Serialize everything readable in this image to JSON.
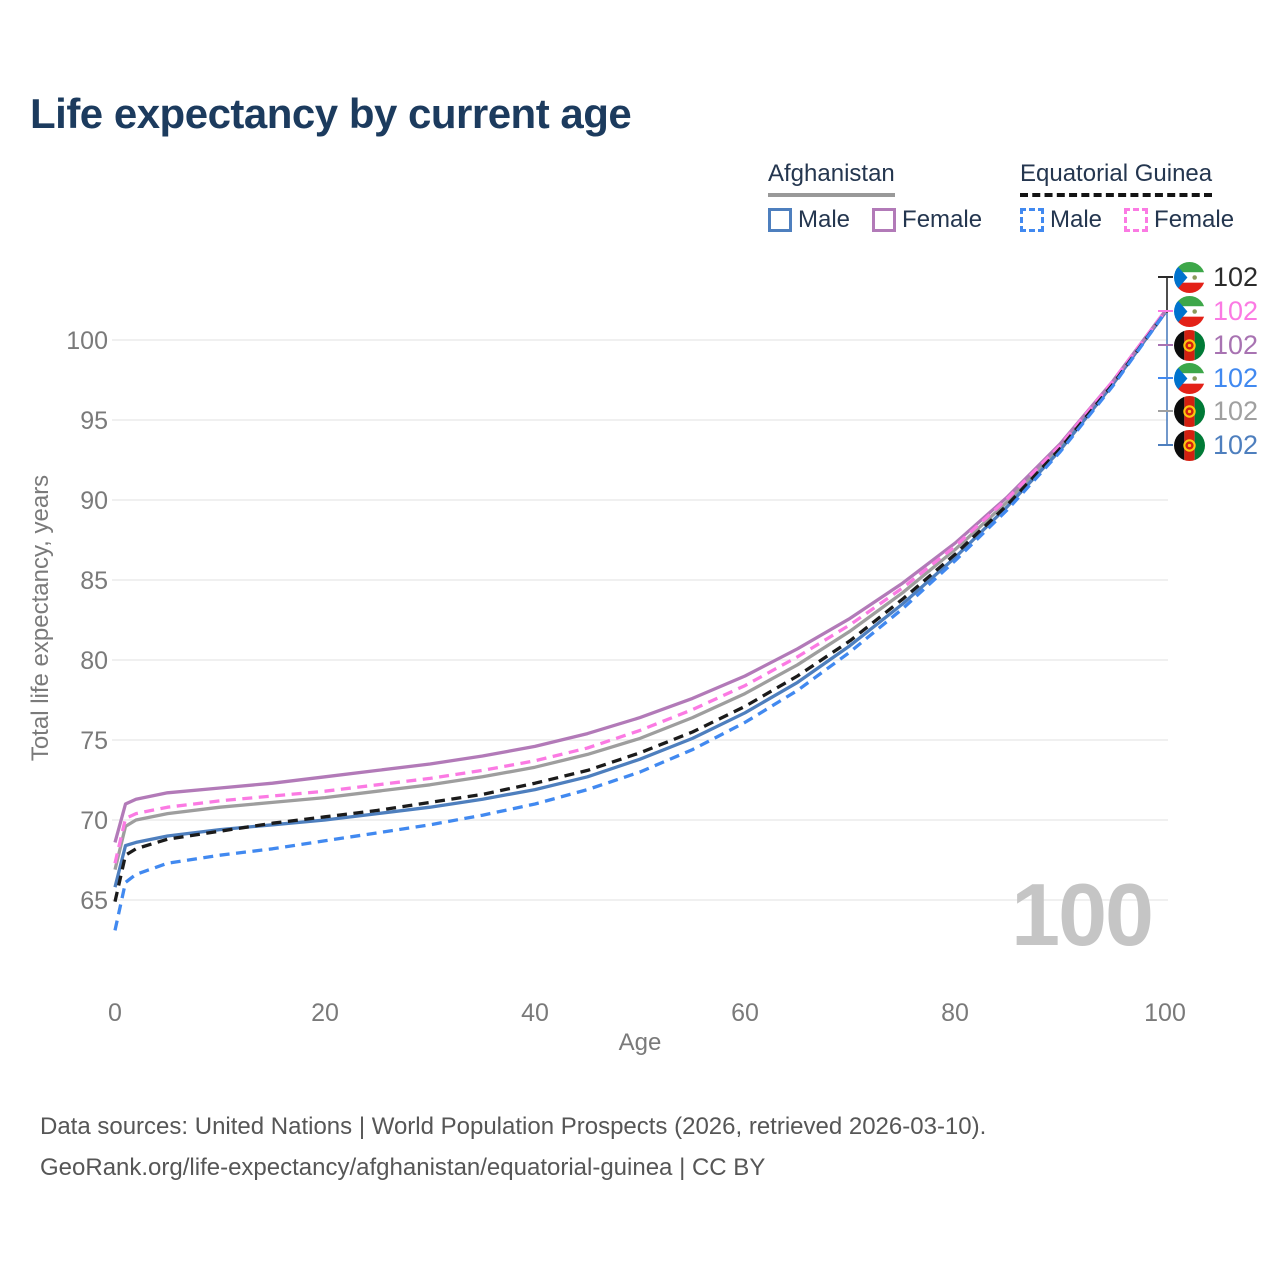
{
  "title": "Life expectancy by current age",
  "watermark_age": "100",
  "legend": {
    "groups": [
      {
        "label": "Afghanistan",
        "line_style": "solid",
        "underline_color": "#999999",
        "items": [
          {
            "label": "Male",
            "color": "#4e7fbe",
            "swatch_style": "solid"
          },
          {
            "label": "Female",
            "color": "#b27ab8",
            "swatch_style": "solid"
          }
        ]
      },
      {
        "label": "Equatorial Guinea",
        "line_style": "dashed",
        "underline_color": "#141414",
        "items": [
          {
            "label": "Male",
            "color": "#4189f0",
            "swatch_style": "dashed"
          },
          {
            "label": "Female",
            "color": "#fb7ae3",
            "swatch_style": "dashed"
          }
        ]
      }
    ]
  },
  "end_labels": [
    {
      "series": "Equatorial Guinea Total",
      "country": "Equatorial Guinea",
      "value": "102",
      "color": "#2b2b2b"
    },
    {
      "series": "Equatorial Guinea Female",
      "country": "Equatorial Guinea",
      "value": "102",
      "color": "#fb7ae3"
    },
    {
      "series": "Afghanistan Female",
      "country": "Afghanistan",
      "value": "102",
      "color": "#a873b2"
    },
    {
      "series": "Equatorial Guinea Male",
      "country": "Equatorial Guinea",
      "value": "102",
      "color": "#4189f0"
    },
    {
      "series": "Afghanistan Total",
      "country": "Afghanistan",
      "value": "102",
      "color": "#a0a0a0"
    },
    {
      "series": "Afghanistan Male",
      "country": "Afghanistan",
      "value": "102",
      "color": "#4e7fbe"
    }
  ],
  "footer": {
    "line1": "Data sources: United Nations | World Population Prospects (2026, retrieved 2026-03-10).",
    "line2": "GeoRank.org/life-expectancy/afghanistan/equatorial-guinea | CC BY"
  },
  "chart_data": {
    "type": "line",
    "title": "Life expectancy by current age",
    "xlabel": "Age",
    "ylabel": "Total life expectancy, years",
    "x_ticks": [
      0,
      20,
      40,
      60,
      80,
      100
    ],
    "y_ticks": [
      65,
      70,
      75,
      80,
      85,
      90,
      95,
      100
    ],
    "xlim": [
      0,
      100
    ],
    "ylim": [
      63,
      102
    ],
    "grid": "horizontal",
    "legend_position": "top-right",
    "colors": {
      "grid": "#ececec",
      "tick": "#7a7a7a",
      "watermark": "#c5c5c5"
    },
    "ages": [
      0,
      1,
      2,
      5,
      10,
      15,
      20,
      25,
      30,
      35,
      40,
      45,
      50,
      55,
      60,
      65,
      70,
      75,
      80,
      85,
      90,
      95,
      100
    ],
    "series": [
      {
        "id": "afghanistan-total",
        "name": "Afghanistan Total",
        "country": "Afghanistan",
        "sex": "Both",
        "style": "solid",
        "color": "#9e9e9e",
        "end_value": 102,
        "values": [
          66.9,
          69.6,
          70.0,
          70.4,
          70.8,
          71.1,
          71.4,
          71.8,
          72.2,
          72.7,
          73.3,
          74.1,
          75.1,
          76.4,
          77.9,
          79.7,
          81.8,
          84.2,
          86.9,
          89.9,
          93.3,
          97.3,
          101.7
        ]
      },
      {
        "id": "afghanistan-male",
        "name": "Afghanistan Male",
        "country": "Afghanistan",
        "sex": "Male",
        "style": "solid",
        "color": "#4e7fbe",
        "end_value": 102,
        "values": [
          65.8,
          68.4,
          68.6,
          69.0,
          69.4,
          69.7,
          70.0,
          70.4,
          70.8,
          71.3,
          71.9,
          72.7,
          73.8,
          75.1,
          76.7,
          78.6,
          80.9,
          83.5,
          86.4,
          89.6,
          93.1,
          97.2,
          101.7
        ]
      },
      {
        "id": "afghanistan-female",
        "name": "Afghanistan Female",
        "country": "Afghanistan",
        "sex": "Female",
        "style": "solid",
        "color": "#b27ab8",
        "end_value": 102,
        "values": [
          68.6,
          71.0,
          71.3,
          71.7,
          72.0,
          72.3,
          72.7,
          73.1,
          73.5,
          74.0,
          74.6,
          75.4,
          76.4,
          77.6,
          79.0,
          80.7,
          82.6,
          84.8,
          87.3,
          90.2,
          93.5,
          97.4,
          101.8
        ]
      },
      {
        "id": "equatorial-guinea-female",
        "name": "Equatorial Guinea Female",
        "country": "Equatorial Guinea",
        "sex": "Female",
        "style": "dashed",
        "color": "#fb7ae3",
        "end_value": 102,
        "values": [
          67.3,
          70.1,
          70.4,
          70.8,
          71.2,
          71.5,
          71.8,
          72.2,
          72.6,
          73.1,
          73.7,
          74.5,
          75.6,
          76.9,
          78.4,
          80.2,
          82.2,
          84.5,
          87.1,
          90.1,
          93.4,
          97.4,
          101.8
        ]
      },
      {
        "id": "equatorial-guinea-total",
        "name": "Equatorial Guinea Total",
        "country": "Equatorial Guinea",
        "sex": "Both",
        "style": "dashed",
        "color": "#1b1b1b",
        "end_value": 102,
        "values": [
          64.9,
          67.8,
          68.2,
          68.8,
          69.3,
          69.8,
          70.2,
          70.6,
          71.1,
          71.6,
          72.3,
          73.1,
          74.2,
          75.5,
          77.1,
          79.0,
          81.2,
          83.8,
          86.6,
          89.7,
          93.2,
          97.2,
          101.7
        ]
      },
      {
        "id": "equatorial-guinea-male",
        "name": "Equatorial Guinea Male",
        "country": "Equatorial Guinea",
        "sex": "Male",
        "style": "dashed",
        "color": "#4189f0",
        "end_value": 102,
        "values": [
          63.1,
          66.1,
          66.6,
          67.3,
          67.8,
          68.2,
          68.7,
          69.2,
          69.7,
          70.3,
          71.0,
          71.9,
          73.0,
          74.4,
          76.1,
          78.1,
          80.5,
          83.2,
          86.2,
          89.4,
          93.0,
          97.1,
          101.7
        ]
      }
    ]
  }
}
